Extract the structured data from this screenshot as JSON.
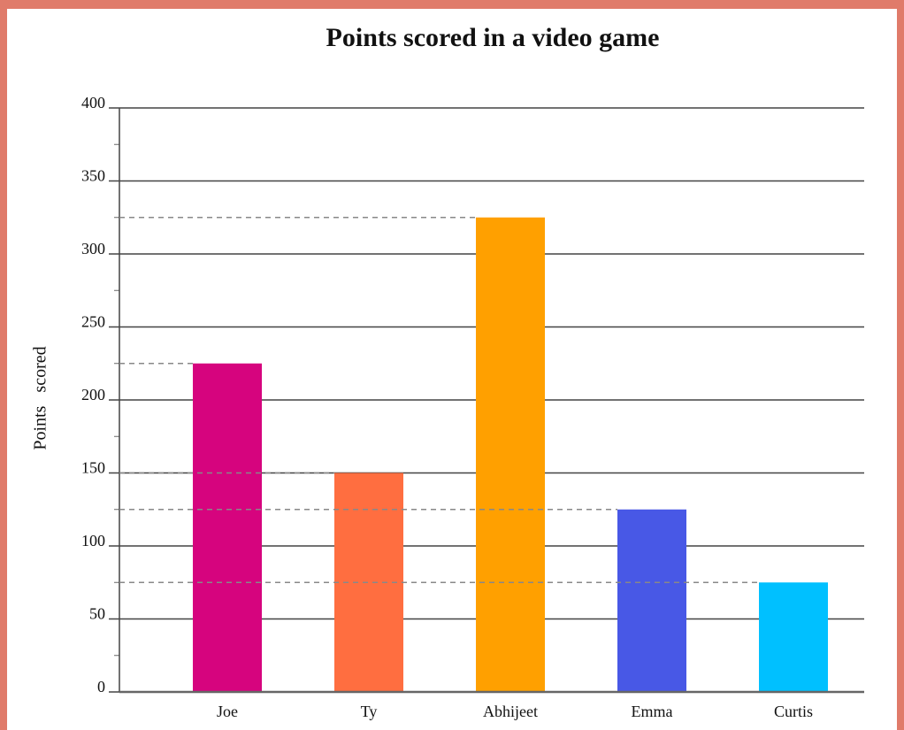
{
  "chart_data": {
    "type": "bar",
    "title": "Points scored in a video game",
    "y_label": "Points   scored",
    "categories": [
      "Joe",
      "Ty",
      "Abhijeet",
      "Emma",
      "Curtis"
    ],
    "values": [
      225,
      150,
      325,
      125,
      75
    ],
    "colors": [
      "#d6047e",
      "#ff6e40",
      "#ffa000",
      "#4858e6",
      "#00c0ff"
    ],
    "ylim": [
      0,
      400
    ],
    "yticks": [
      0,
      50,
      100,
      150,
      200,
      250,
      300,
      350,
      400
    ],
    "minor_yticks": [
      25,
      75,
      125,
      175,
      225,
      275,
      325,
      375
    ],
    "grid": true,
    "reference_lines": true
  }
}
